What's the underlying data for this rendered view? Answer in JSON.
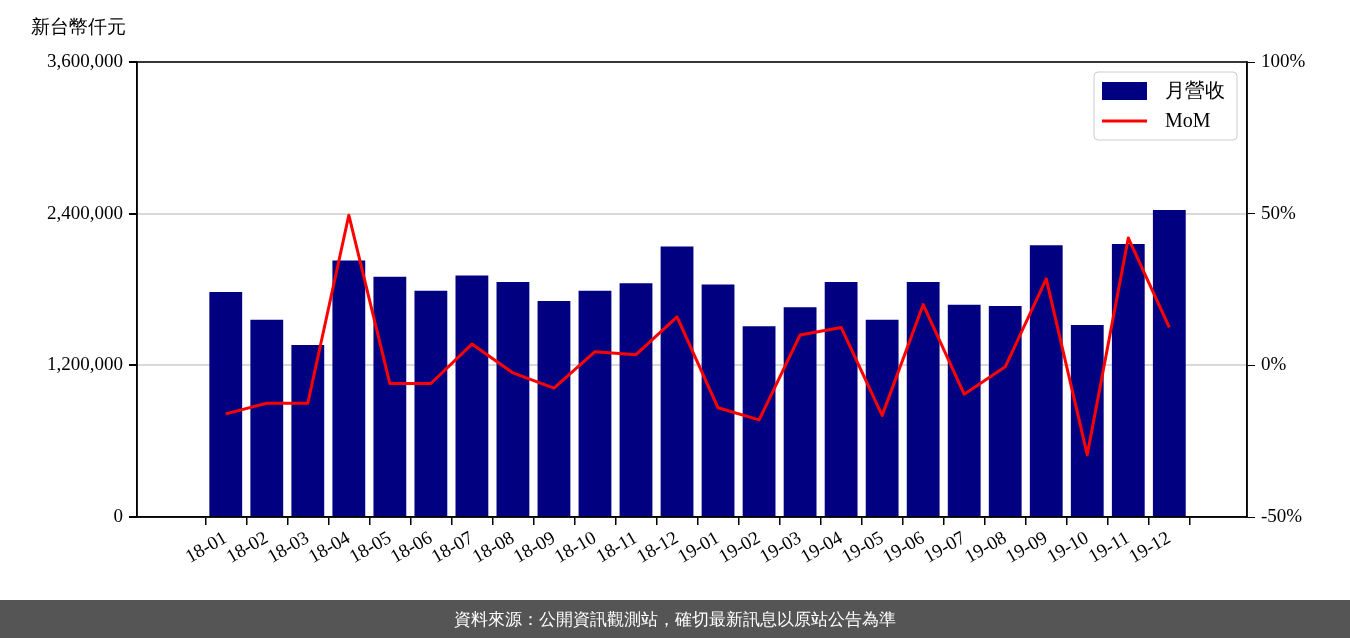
{
  "chart_data": {
    "type": "bar",
    "ylabel": "新台幣仟元",
    "categories": [
      "18-01",
      "18-02",
      "18-03",
      "18-04",
      "18-05",
      "18-06",
      "18-07",
      "18-08",
      "18-09",
      "18-10",
      "18-11",
      "18-12",
      "19-01",
      "19-02",
      "19-03",
      "19-04",
      "19-05",
      "19-06",
      "19-07",
      "19-08",
      "19-09",
      "19-10",
      "19-11",
      "19-12"
    ],
    "series": [
      {
        "name": "月營收",
        "color": "#000080",
        "values": [
          1780000,
          1560000,
          1360000,
          2030000,
          1900000,
          1790000,
          1910000,
          1860000,
          1710000,
          1790000,
          1850000,
          2140000,
          1840000,
          1510000,
          1660000,
          1860000,
          1560000,
          1860000,
          1680000,
          1670000,
          2150000,
          1520000,
          2160000,
          2430000
        ]
      },
      {
        "name": "MoM",
        "type": "line",
        "axis": "y2",
        "color": "#ff0000",
        "values": [
          -16,
          -12.5,
          -12.5,
          49.5,
          -6,
          -6,
          7,
          -2.5,
          -7.5,
          4.5,
          3.5,
          16,
          -14,
          -18,
          10,
          12.5,
          -16.5,
          20,
          -9.5,
          -0.5,
          28.5,
          -29.5,
          42,
          12.5
        ]
      }
    ],
    "ylim": [
      0,
      3600000
    ],
    "yticks": [
      {
        "value": 0,
        "label": "0"
      },
      {
        "value": 1200000,
        "label": "1,200,000"
      },
      {
        "value": 2400000,
        "label": "2,400,000"
      },
      {
        "value": 3600000,
        "label": "3,600,000"
      }
    ],
    "y2lim": [
      -50,
      100
    ],
    "y2ticks": [
      {
        "value": -50,
        "label": "-50%"
      },
      {
        "value": 0,
        "label": "0%"
      },
      {
        "value": 50,
        "label": "50%"
      },
      {
        "value": 100,
        "label": "100%"
      }
    ],
    "grid": "y",
    "legend": "top right",
    "annotations": [
      "資料來源：公開資訊觀測站，確切最新訊息以原站公告為準"
    ]
  }
}
